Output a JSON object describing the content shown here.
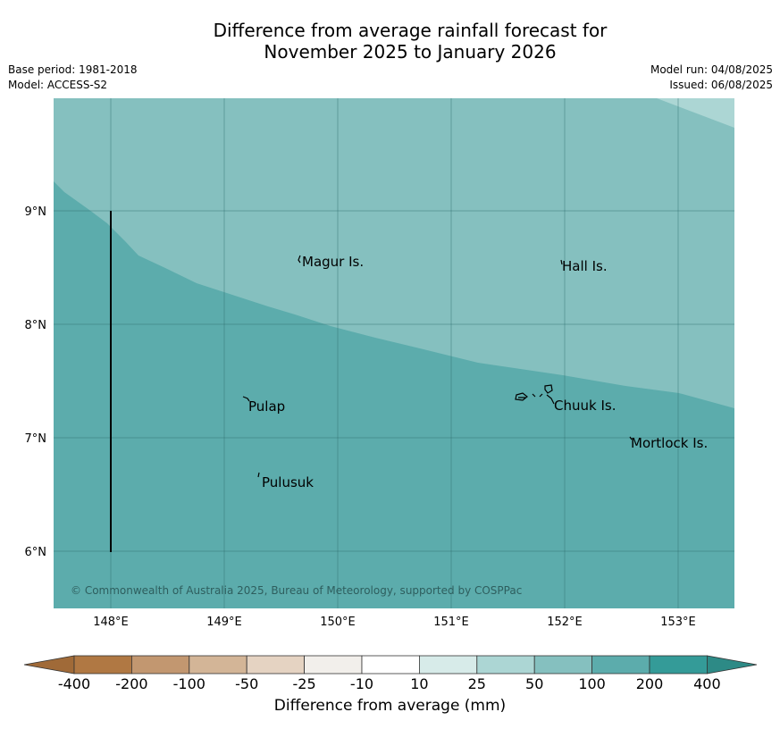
{
  "header": {
    "title_line1": "Difference from average rainfall forecast for",
    "title_line2": "November 2025 to January 2026",
    "base_period": "Base period: 1981-2018",
    "model": "Model: ACCESS-S2",
    "model_run": "Model run: 04/08/2025",
    "issued": "Issued: 06/08/2025"
  },
  "map": {
    "lon_ticks": [
      "148°E",
      "149°E",
      "150°E",
      "151°E",
      "152°E",
      "153°E"
    ],
    "lat_ticks": [
      "9°N",
      "8°N",
      "7°N",
      "6°N"
    ],
    "places": [
      {
        "name": "Magur Is."
      },
      {
        "name": "Hall Is."
      },
      {
        "name": "Pulap"
      },
      {
        "name": "Chuuk Is."
      },
      {
        "name": "Mortlock Is."
      },
      {
        "name": "Pulusuk"
      }
    ],
    "copyright": "© Commonwealth of Australia 2025, Bureau of Meteorology, supported by COSPPac",
    "colors": {
      "band_50_100": "#85c0bf",
      "band_100_200": "#5cacac",
      "band_25_50": "#acd6d4"
    }
  },
  "colorbar": {
    "label": "Difference from average (mm)",
    "ticks": [
      "-400",
      "-200",
      "-100",
      "-50",
      "-25",
      "-10",
      "10",
      "25",
      "50",
      "100",
      "200",
      "400"
    ],
    "colors": [
      "#b07843",
      "#c29770",
      "#d3b597",
      "#e5d3c2",
      "#f2efeb",
      "#ffffff",
      "#d7ebe9",
      "#acd6d4",
      "#85c0bf",
      "#5cacac",
      "#349b98"
    ],
    "under_color": "#a06a38",
    "over_color": "#2d8a86"
  }
}
